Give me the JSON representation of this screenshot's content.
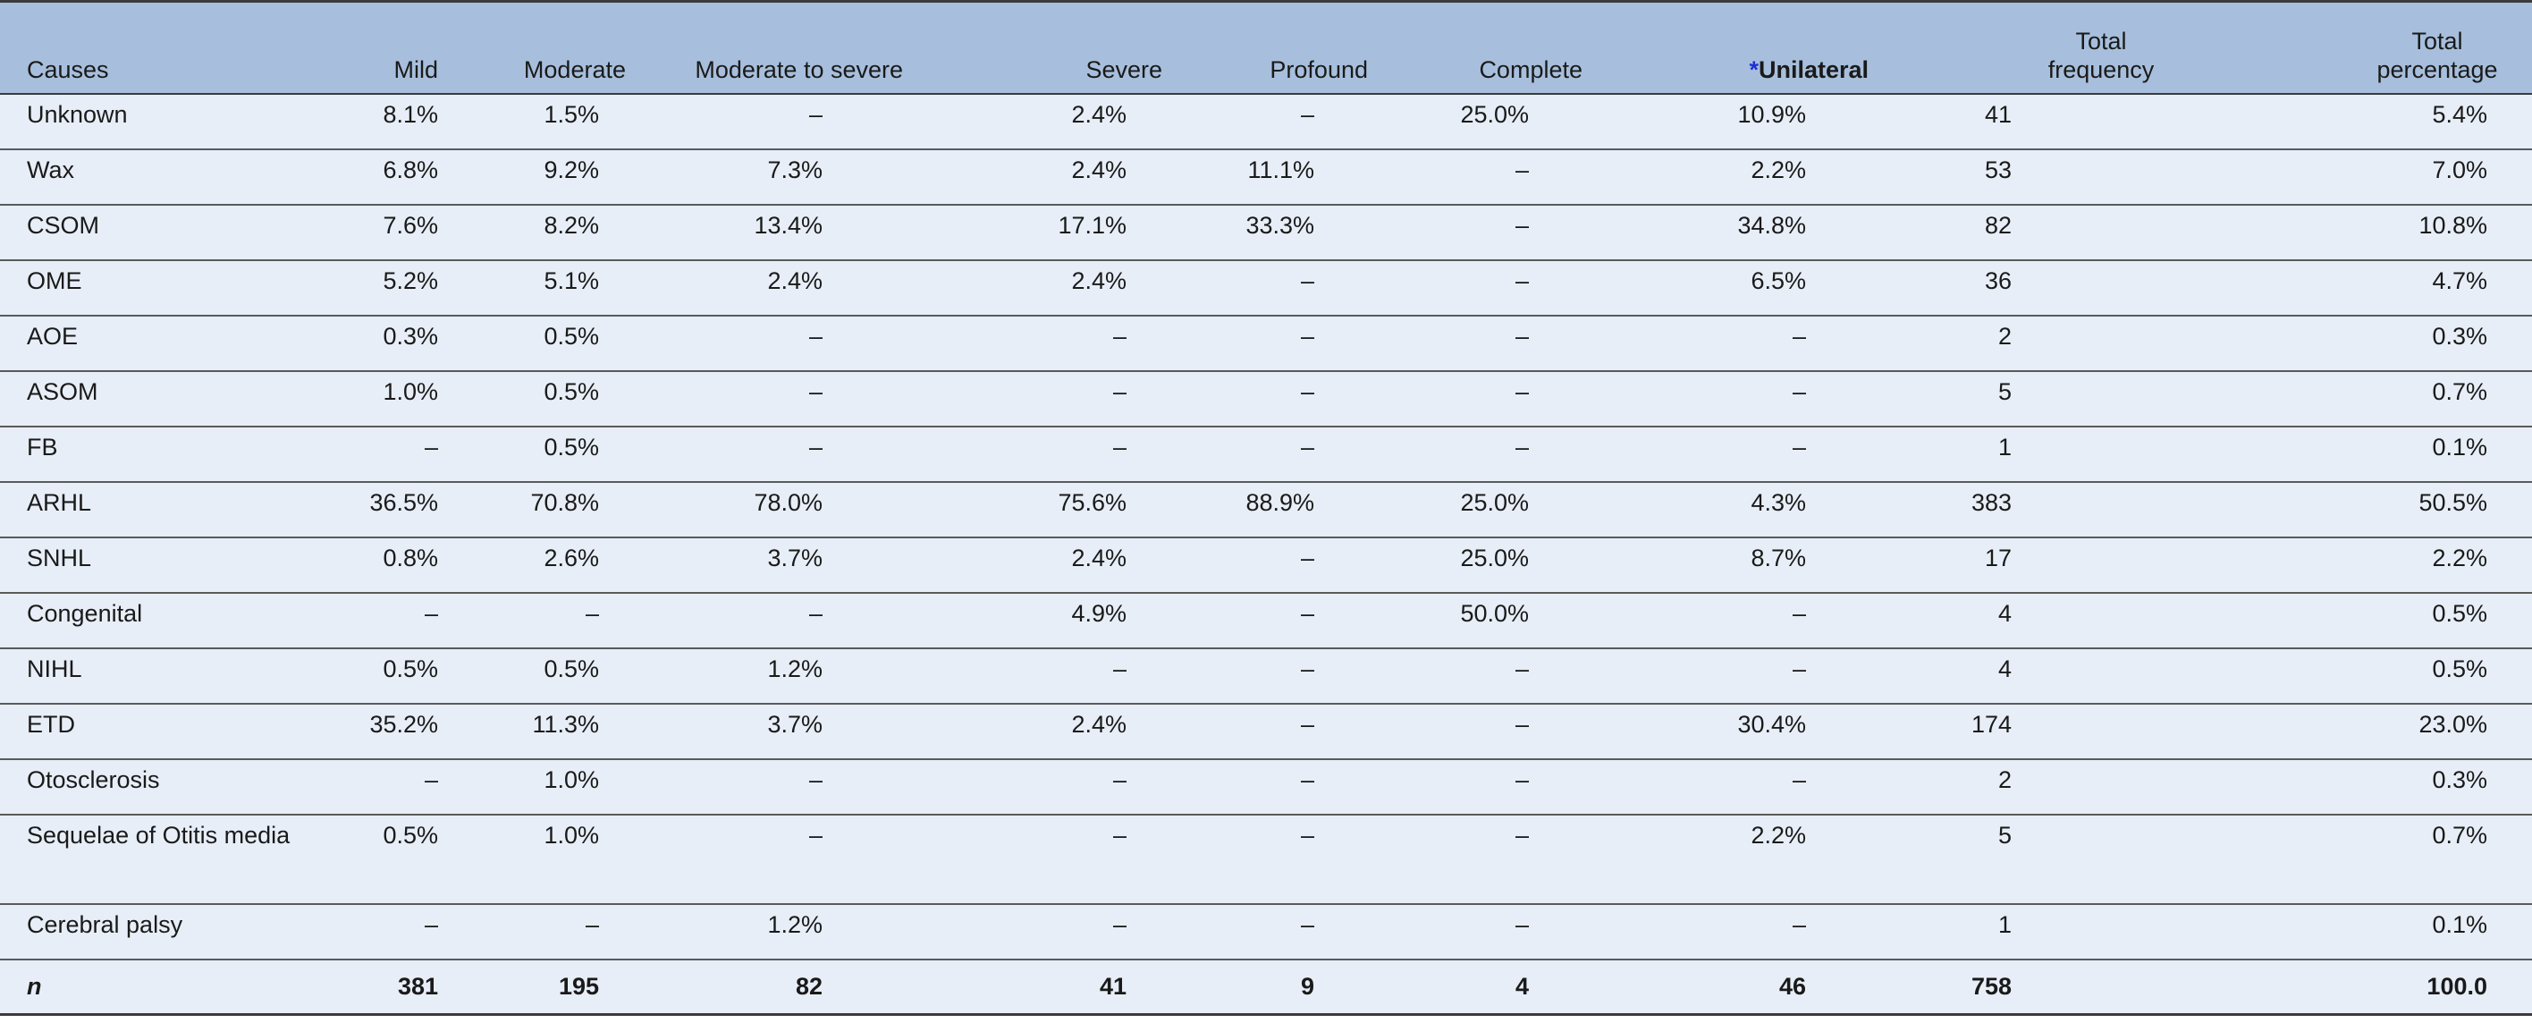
{
  "headers": {
    "causes": "Causes",
    "mild": "Mild",
    "moderate": "Moderate",
    "moderate_severe": "Moderate to severe",
    "severe": "Severe",
    "profound": "Profound",
    "complete": "Complete",
    "unilateral_mark": "*",
    "unilateral": "Unilateral",
    "total_frequency_1": "Total",
    "total_frequency_2": "frequency",
    "total_percentage_1": "Total",
    "total_percentage_2": "percentage"
  },
  "rows": [
    {
      "cause": "Unknown",
      "mild": "8.1%",
      "moderate": "1.5%",
      "mod_sev": "–",
      "severe": "2.4%",
      "profound": "–",
      "complete": "25.0%",
      "unilateral": "10.9%",
      "freq": "41",
      "pct": "5.4%"
    },
    {
      "cause": "Wax",
      "mild": "6.8%",
      "moderate": "9.2%",
      "mod_sev": "7.3%",
      "severe": "2.4%",
      "profound": "11.1%",
      "complete": "–",
      "unilateral": "2.2%",
      "freq": "53",
      "pct": "7.0%"
    },
    {
      "cause": "CSOM",
      "mild": "7.6%",
      "moderate": "8.2%",
      "mod_sev": "13.4%",
      "severe": "17.1%",
      "profound": "33.3%",
      "complete": "–",
      "unilateral": "34.8%",
      "freq": "82",
      "pct": "10.8%"
    },
    {
      "cause": "OME",
      "mild": "5.2%",
      "moderate": "5.1%",
      "mod_sev": "2.4%",
      "severe": "2.4%",
      "profound": "–",
      "complete": "–",
      "unilateral": "6.5%",
      "freq": "36",
      "pct": "4.7%"
    },
    {
      "cause": "AOE",
      "mild": "0.3%",
      "moderate": "0.5%",
      "mod_sev": "–",
      "severe": "–",
      "profound": "–",
      "complete": "–",
      "unilateral": "–",
      "freq": "2",
      "pct": "0.3%"
    },
    {
      "cause": "ASOM",
      "mild": "1.0%",
      "moderate": "0.5%",
      "mod_sev": "–",
      "severe": "–",
      "profound": "–",
      "complete": "–",
      "unilateral": "–",
      "freq": "5",
      "pct": "0.7%"
    },
    {
      "cause": "FB",
      "mild": "–",
      "moderate": "0.5%",
      "mod_sev": "–",
      "severe": "–",
      "profound": "–",
      "complete": "–",
      "unilateral": "–",
      "freq": "1",
      "pct": "0.1%"
    },
    {
      "cause": "ARHL",
      "mild": "36.5%",
      "moderate": "70.8%",
      "mod_sev": "78.0%",
      "severe": "75.6%",
      "profound": "88.9%",
      "complete": "25.0%",
      "unilateral": "4.3%",
      "freq": "383",
      "pct": "50.5%"
    },
    {
      "cause": "SNHL",
      "mild": "0.8%",
      "moderate": "2.6%",
      "mod_sev": "3.7%",
      "severe": "2.4%",
      "profound": "–",
      "complete": "25.0%",
      "unilateral": "8.7%",
      "freq": "17",
      "pct": "2.2%"
    },
    {
      "cause": "Congenital",
      "mild": "–",
      "moderate": "–",
      "mod_sev": "–",
      "severe": "4.9%",
      "profound": "–",
      "complete": "50.0%",
      "unilateral": "–",
      "freq": "4",
      "pct": "0.5%"
    },
    {
      "cause": "NIHL",
      "mild": "0.5%",
      "moderate": "0.5%",
      "mod_sev": "1.2%",
      "severe": "–",
      "profound": "–",
      "complete": "–",
      "unilateral": "–",
      "freq": "4",
      "pct": "0.5%"
    },
    {
      "cause": "ETD",
      "mild": "35.2%",
      "moderate": "11.3%",
      "mod_sev": "3.7%",
      "severe": "2.4%",
      "profound": "–",
      "complete": "–",
      "unilateral": "30.4%",
      "freq": "174",
      "pct": "23.0%"
    },
    {
      "cause": "Otosclerosis",
      "mild": "–",
      "moderate": "1.0%",
      "mod_sev": "–",
      "severe": "–",
      "profound": "–",
      "complete": "–",
      "unilateral": "–",
      "freq": "2",
      "pct": "0.3%"
    },
    {
      "cause": "Sequelae of Otitis media",
      "mild": "0.5%",
      "moderate": "1.0%",
      "mod_sev": "–",
      "severe": "–",
      "profound": "–",
      "complete": "–",
      "unilateral": "2.2%",
      "freq": "5",
      "pct": "0.7%"
    },
    {
      "cause": "Cerebral palsy",
      "mild": "–",
      "moderate": "–",
      "mod_sev": "1.2%",
      "severe": "–",
      "profound": "–",
      "complete": "–",
      "unilateral": "–",
      "freq": "1",
      "pct": "0.1%"
    }
  ],
  "total": {
    "cause": "n",
    "mild": "381",
    "moderate": "195",
    "mod_sev": "82",
    "severe": "41",
    "profound": "9",
    "complete": "4",
    "unilateral": "46",
    "freq": "758",
    "pct": "100.0"
  }
}
